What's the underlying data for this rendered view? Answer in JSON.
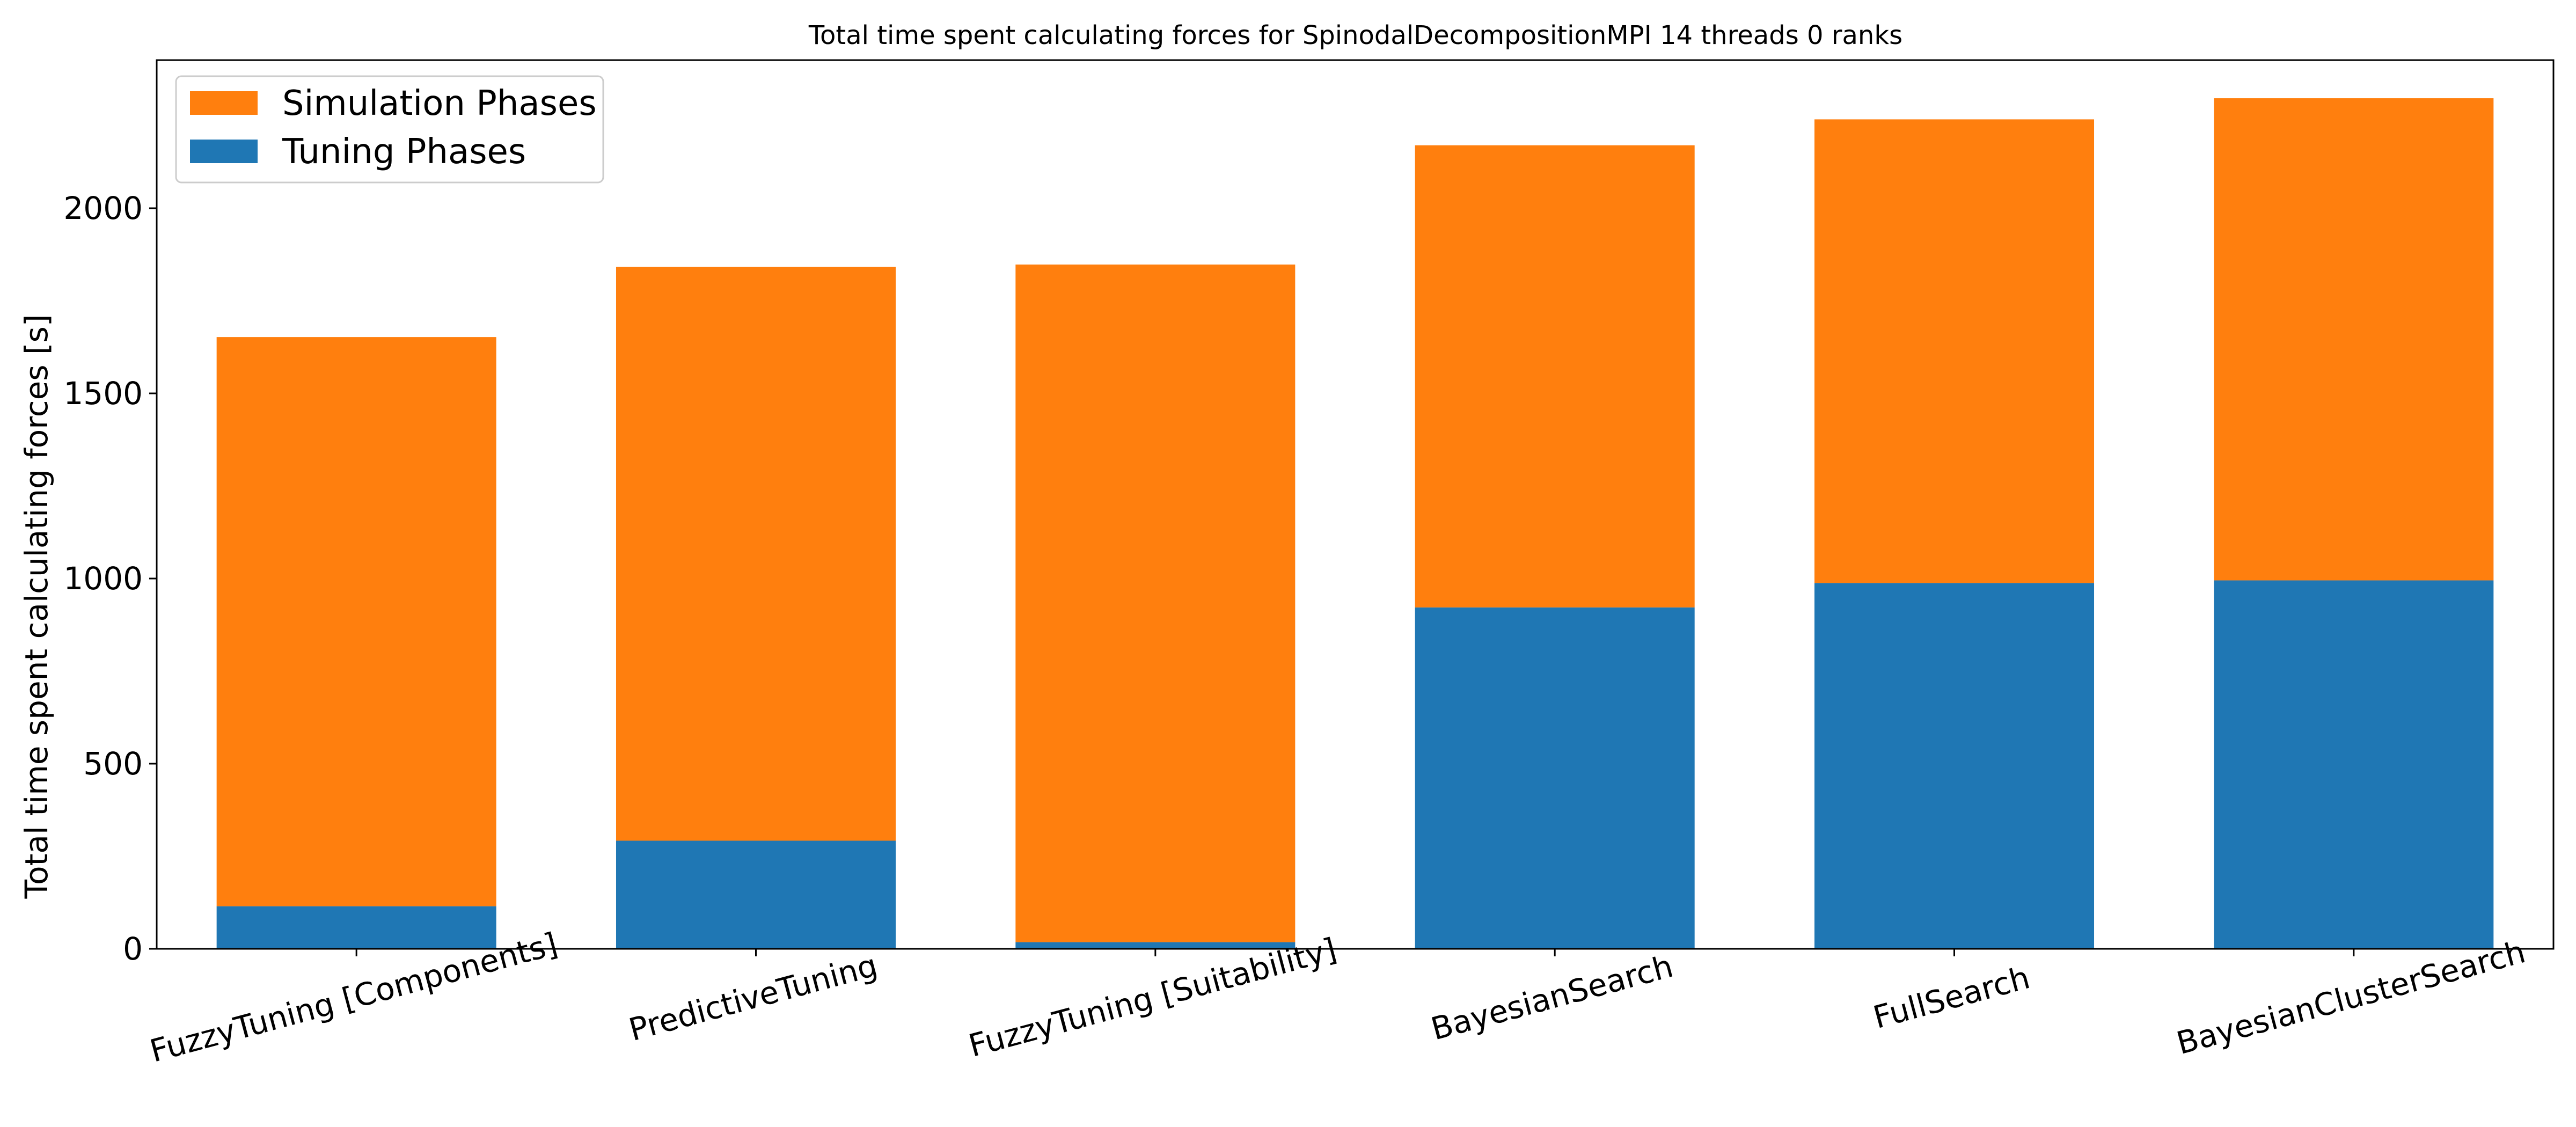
{
  "chart_data": {
    "type": "bar",
    "stacked": true,
    "title": "Total time spent calculating forces for SpinodalDecompositionMPI 14 threads 0 ranks",
    "xlabel": "",
    "ylabel": "Total time spent calculating forces [s]",
    "ylim": [
      0,
      2400
    ],
    "yticks": [
      0,
      500,
      1000,
      1500,
      2000
    ],
    "grid": false,
    "legend_position": "top-left",
    "categories": [
      "FuzzyTuning [Components]",
      "PredictiveTuning",
      "FuzzyTuning [Suitability]",
      "BayesianSearch",
      "FullSearch",
      "BayesianClusterSearch"
    ],
    "series": [
      {
        "name": "Tuning Phases",
        "color": "#1f77b4",
        "values": [
          115,
          292,
          18,
          922,
          988,
          995
        ]
      },
      {
        "name": "Simulation Phases",
        "color": "#ff7f0e",
        "values": [
          1537,
          1550,
          1830,
          1248,
          1252,
          1302
        ]
      }
    ],
    "legend_order": [
      "Simulation Phases",
      "Tuning Phases"
    ]
  }
}
